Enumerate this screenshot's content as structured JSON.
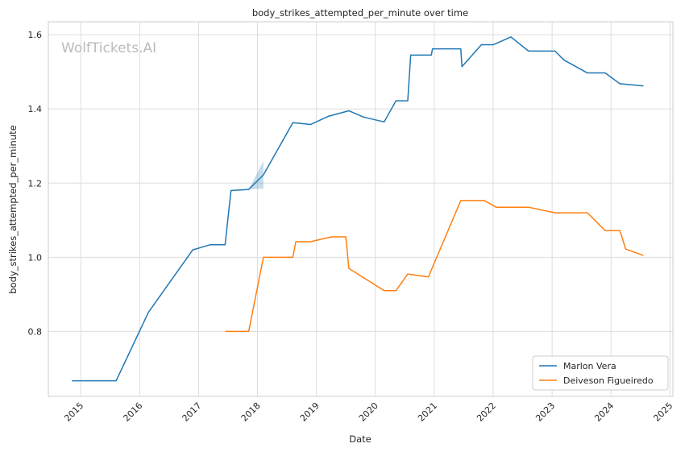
{
  "chart_data": {
    "type": "line",
    "title": "body_strikes_attempted_per_minute over time",
    "xlabel": "Date",
    "ylabel": "body_strikes_attempted_per_minute",
    "watermark": "WolfTickets.AI",
    "xlim": [
      2014.45,
      2025.05
    ],
    "ylim": [
      0.625,
      1.635
    ],
    "x_ticks": [
      2015,
      2016,
      2017,
      2018,
      2019,
      2020,
      2021,
      2022,
      2023,
      2024,
      2025
    ],
    "x_tick_labels": [
      "2015",
      "2016",
      "2017",
      "2018",
      "2019",
      "2020",
      "2021",
      "2022",
      "2023",
      "2024",
      "2025"
    ],
    "y_ticks": [
      0.8,
      1.0,
      1.2,
      1.4,
      1.6
    ],
    "y_tick_labels": [
      "0.8",
      "1.0",
      "1.2",
      "1.4",
      "1.6"
    ],
    "grid": true,
    "legend_position": "bottom-right",
    "series": [
      {
        "name": "Marlon Vera",
        "color": "#1f77b4",
        "x": [
          2014.85,
          2015.6,
          2016.15,
          2016.9,
          2017.2,
          2017.45,
          2017.55,
          2017.85,
          2018.1,
          2018.6,
          2018.9,
          2019.2,
          2019.55,
          2019.8,
          2020.15,
          2020.35,
          2020.55,
          2020.6,
          2020.95,
          2020.97,
          2021.45,
          2021.47,
          2021.8,
          2022.0,
          2022.3,
          2022.6,
          2023.05,
          2023.2,
          2023.6,
          2023.9,
          2024.15,
          2024.55
        ],
        "y": [
          0.667,
          0.667,
          0.852,
          1.02,
          1.034,
          1.034,
          1.18,
          1.183,
          1.222,
          1.363,
          1.358,
          1.38,
          1.395,
          1.378,
          1.365,
          1.422,
          1.422,
          1.545,
          1.545,
          1.562,
          1.562,
          1.514,
          1.573,
          1.573,
          1.594,
          1.556,
          1.556,
          1.532,
          1.497,
          1.497,
          1.468,
          1.462
        ]
      },
      {
        "name": "Deiveson Figueiredo",
        "color": "#ff7f0e",
        "x": [
          2017.45,
          2017.85,
          2018.1,
          2018.6,
          2018.65,
          2018.9,
          2019.25,
          2019.5,
          2019.55,
          2020.15,
          2020.35,
          2020.55,
          2020.9,
          2021.45,
          2021.85,
          2022.05,
          2022.6,
          2023.05,
          2023.6,
          2023.9,
          2024.15,
          2024.25,
          2024.55
        ],
        "y": [
          0.8,
          0.8,
          1.0,
          1.0,
          1.042,
          1.042,
          1.055,
          1.055,
          0.97,
          0.91,
          0.91,
          0.955,
          0.947,
          1.153,
          1.153,
          1.135,
          1.135,
          1.12,
          1.12,
          1.072,
          1.072,
          1.022,
          1.005
        ]
      }
    ],
    "uncertainty_band": {
      "series": "Marlon Vera",
      "color": "#1f77b4",
      "x": [
        2017.85,
        2018.1
      ],
      "y_low": [
        1.183,
        1.185
      ],
      "y_high": [
        1.183,
        1.26
      ]
    }
  }
}
